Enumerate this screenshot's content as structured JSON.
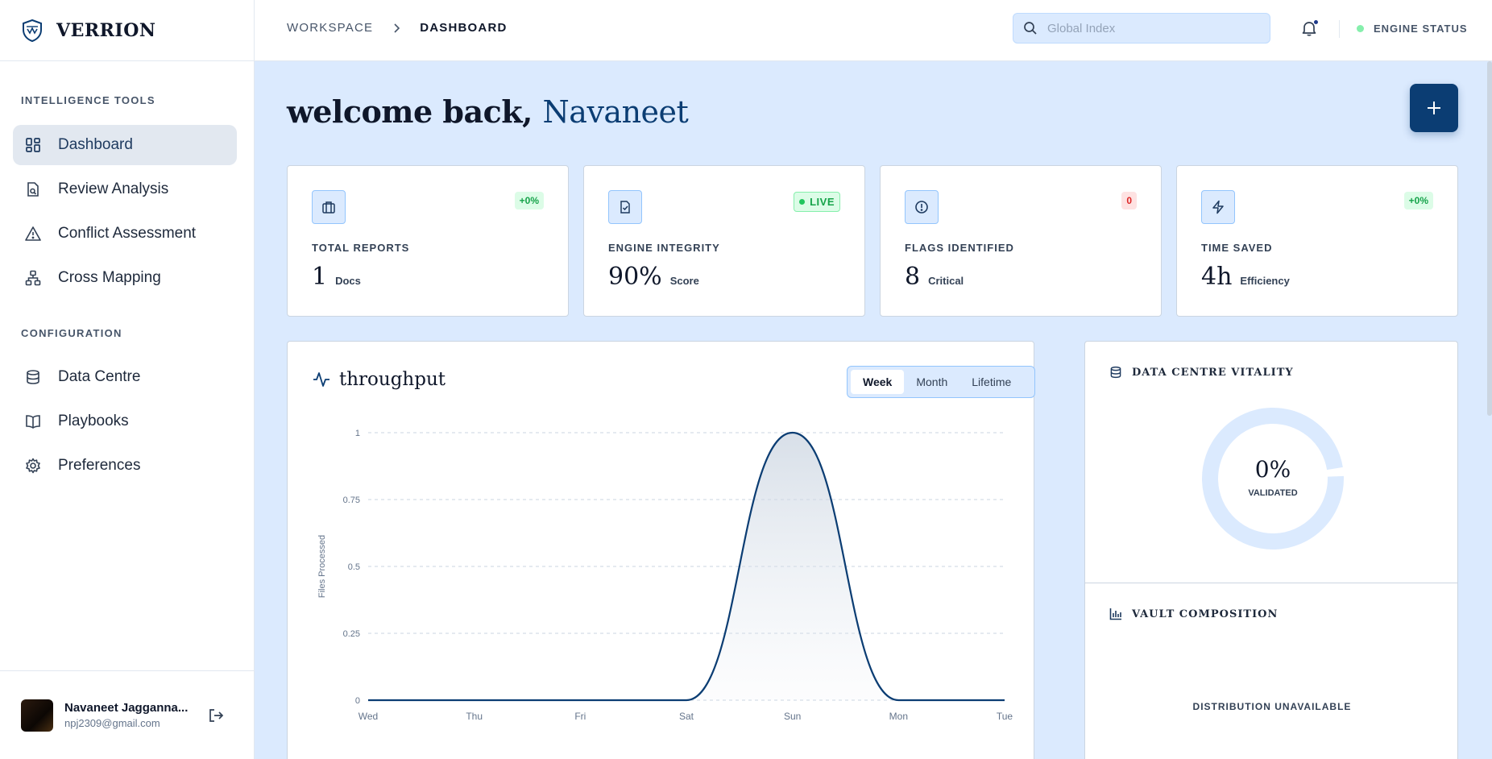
{
  "brand": {
    "name": "VERRION"
  },
  "sidebar": {
    "section_tools": "INTELLIGENCE TOOLS",
    "section_config": "CONFIGURATION",
    "items": [
      {
        "label": "Dashboard",
        "icon": "dashboard-icon",
        "active": true
      },
      {
        "label": "Review Analysis",
        "icon": "file-search-icon"
      },
      {
        "label": "Conflict Assessment",
        "icon": "warning-icon"
      },
      {
        "label": "Cross Mapping",
        "icon": "network-icon"
      },
      {
        "label": "Data Centre",
        "icon": "database-icon"
      },
      {
        "label": "Playbooks",
        "icon": "book-icon"
      },
      {
        "label": "Preferences",
        "icon": "gear-icon"
      }
    ],
    "user": {
      "name": "Navaneet Jagganna...",
      "email": "npj2309@gmail.com"
    }
  },
  "header": {
    "breadcrumb": [
      "WORKSPACE",
      "DASHBOARD"
    ],
    "search_placeholder": "Global Index",
    "engine_status": "ENGINE STATUS",
    "status_color": "#86efac"
  },
  "welcome": {
    "prefix": "welcome back,",
    "name": "Navaneet"
  },
  "stats": [
    {
      "label": "TOTAL REPORTS",
      "value": "1",
      "unit": "Docs",
      "badge": "+0%",
      "icon": "briefcase-icon"
    },
    {
      "label": "ENGINE INTEGRITY",
      "value": "90%",
      "unit": "Score",
      "badge": "LIVE",
      "icon": "file-check-icon"
    },
    {
      "label": "FLAGS IDENTIFIED",
      "value": "8",
      "unit": "Critical",
      "badge": "0",
      "icon": "alert-circle-icon"
    },
    {
      "label": "TIME SAVED",
      "value": "4h",
      "unit": "Efficiency",
      "badge": "+0%",
      "icon": "lightning-icon"
    }
  ],
  "throughput": {
    "title": "throughput",
    "tabs": [
      "Week",
      "Month",
      "Lifetime"
    ],
    "active_tab": "Week"
  },
  "chart_data": {
    "type": "area",
    "x": [
      "Wed",
      "Thu",
      "Fri",
      "Sat",
      "Sun",
      "Mon",
      "Tue"
    ],
    "series": [
      {
        "values": [
          0,
          0,
          0,
          0,
          1,
          0,
          0
        ]
      }
    ],
    "ylabel": "Files Processed",
    "yticks": [
      "0",
      "0.25",
      "0.5",
      "0.75",
      "1"
    ],
    "ylim": [
      0,
      1
    ],
    "grid": true,
    "color": "#0b3d73"
  },
  "vitality": {
    "title": "DATA CENTRE VITALITY",
    "value": "0%",
    "label": "VALIDATED",
    "fraction": 0
  },
  "vault": {
    "title": "VAULT COMPOSITION",
    "empty": "DISTRIBUTION UNAVAILABLE"
  },
  "colors": {
    "accent": "#0b3d73",
    "background": "#dbeafe"
  }
}
